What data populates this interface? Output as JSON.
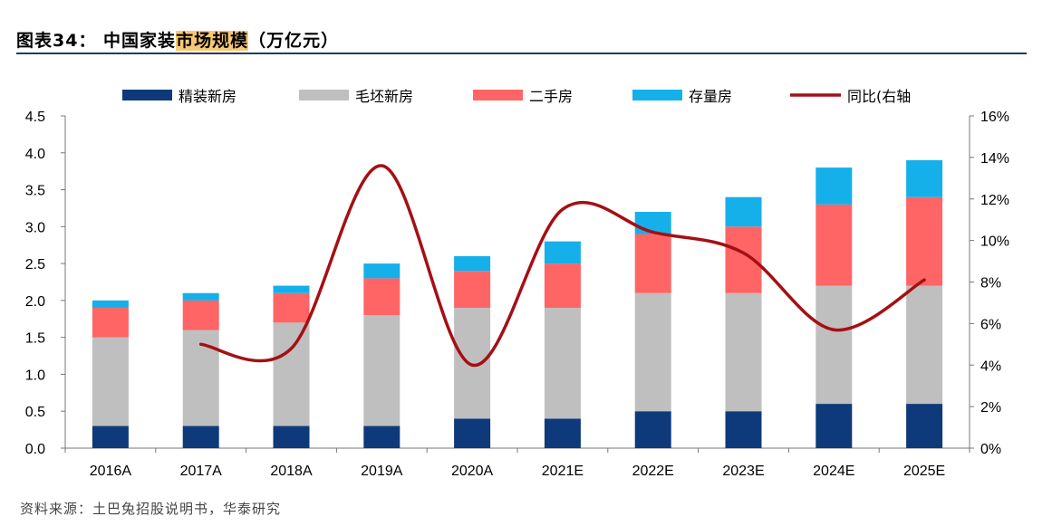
{
  "header": {
    "title_prefix": "图表34：  中国家装",
    "title_highlight": "市场规模",
    "title_suffix": "（万亿元）"
  },
  "source": "资料来源：土巴兔招股说明书，华泰研究",
  "colors": {
    "title_rule": "#1f3a68",
    "highlight": "#f7c873"
  },
  "chart_data": {
    "type": "bar",
    "stacked": true,
    "title": "中国家装市场规模（万亿元）",
    "categories": [
      "2016A",
      "2017A",
      "2018A",
      "2019A",
      "2020A",
      "2021E",
      "2022E",
      "2023E",
      "2024E",
      "2025E"
    ],
    "series": [
      {
        "name": "精装新房",
        "color": "#0e3a7c",
        "values": [
          0.3,
          0.3,
          0.3,
          0.3,
          0.4,
          0.4,
          0.5,
          0.5,
          0.6,
          0.6
        ]
      },
      {
        "name": "毛坯新房",
        "color": "#bfbfbf",
        "values": [
          1.2,
          1.3,
          1.4,
          1.5,
          1.5,
          1.5,
          1.6,
          1.6,
          1.6,
          1.6
        ]
      },
      {
        "name": "二手房",
        "color": "#ff6565",
        "values": [
          0.4,
          0.4,
          0.4,
          0.5,
          0.5,
          0.6,
          0.8,
          0.9,
          1.1,
          1.2
        ]
      },
      {
        "name": "存量房",
        "color": "#15b0ea",
        "values": [
          0.1,
          0.1,
          0.1,
          0.2,
          0.2,
          0.3,
          0.3,
          0.4,
          0.5,
          0.5
        ]
      }
    ],
    "line": {
      "name": "同比(右轴",
      "color": "#a50f14",
      "axis": "right",
      "values": [
        null,
        5.0,
        4.8,
        13.6,
        4.0,
        11.5,
        10.4,
        9.4,
        5.7,
        8.1
      ]
    },
    "y_left": {
      "min": 0,
      "max": 4.5,
      "ticks": [
        "0.0",
        "0.5",
        "1.0",
        "1.5",
        "2.0",
        "2.5",
        "3.0",
        "3.5",
        "4.0",
        "4.5"
      ]
    },
    "y_right": {
      "min": 0,
      "max": 16,
      "ticks": [
        "0%",
        "2%",
        "4%",
        "6%",
        "8%",
        "10%",
        "12%",
        "14%",
        "16%"
      ]
    },
    "legend_position": "top"
  }
}
